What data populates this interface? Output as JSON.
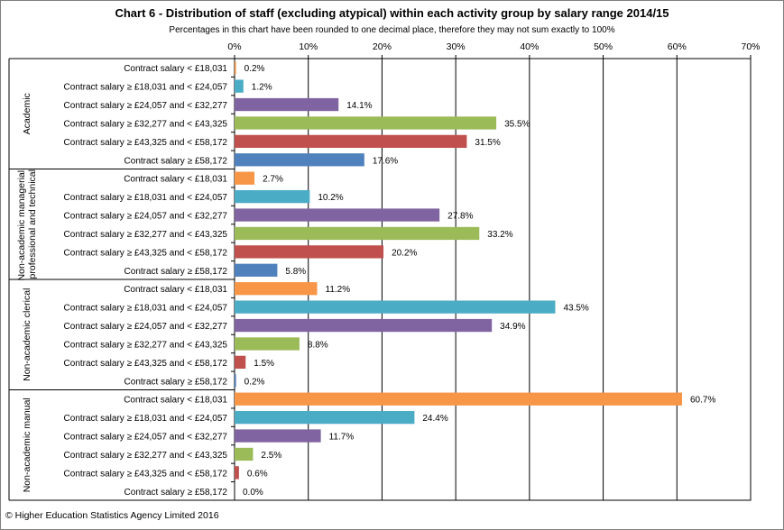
{
  "title": "Chart 6 - Distribution of staff (excluding atypical) within each activity group by salary range 2014/15",
  "subtitle": "Percentages in this chart have been rounded to one decimal place, therefore they may not sum exactly to 100%",
  "copyright": "© Higher Education Statistics Agency Limited 2016",
  "chart_data": {
    "type": "bar",
    "orientation": "horizontal",
    "title": "Chart 6 - Distribution of staff (excluding atypical) within each activity group by salary range 2014/15",
    "subtitle": "Percentages in this chart have been rounded to one decimal place, therefore they may not sum exactly to 100%",
    "xlim": [
      0,
      70
    ],
    "x_ticks": [
      0,
      10,
      20,
      30,
      40,
      50,
      60,
      70
    ],
    "x_tick_labels": [
      "0%",
      "10%",
      "20%",
      "30%",
      "40%",
      "50%",
      "60%",
      "70%"
    ],
    "grid": true,
    "legend": "none",
    "salary_ranges": [
      "Contract salary < £18,031",
      "Contract salary ≥ £18,031 and < £24,057",
      "Contract salary ≥ £24,057 and < £32,277",
      "Contract salary ≥ £32,277 and < £43,325",
      "Contract salary ≥ £43,325 and < £58,172",
      "Contract salary ≥ £58,172"
    ],
    "range_colors": [
      "#f79646",
      "#4bacc6",
      "#8064a2",
      "#9bbb59",
      "#c0504d",
      "#4f81bd"
    ],
    "groups": [
      {
        "name": "Academic",
        "values": [
          0.2,
          1.2,
          14.1,
          35.5,
          31.5,
          17.6
        ],
        "labels": [
          "0.2%",
          "1.2%",
          "14.1%",
          "35.5%",
          "31.5%",
          "17.6%"
        ]
      },
      {
        "name": "Non-academic managerial, professional and technical",
        "values": [
          2.7,
          10.2,
          27.8,
          33.2,
          20.2,
          5.8
        ],
        "labels": [
          "2.7%",
          "10.2%",
          "27.8%",
          "33.2%",
          "20.2%",
          "5.8%"
        ]
      },
      {
        "name": "Non-academic clerical",
        "values": [
          11.2,
          43.5,
          34.9,
          8.8,
          1.5,
          0.2
        ],
        "labels": [
          "11.2%",
          "43.5%",
          "34.9%",
          "8.8%",
          "1.5%",
          "0.2%"
        ]
      },
      {
        "name": "Non-academic manual",
        "values": [
          60.7,
          24.4,
          11.7,
          2.5,
          0.6,
          0.0
        ],
        "labels": [
          "60.7%",
          "24.4%",
          "11.7%",
          "2.5%",
          "0.6%",
          "0.0%"
        ]
      }
    ]
  }
}
